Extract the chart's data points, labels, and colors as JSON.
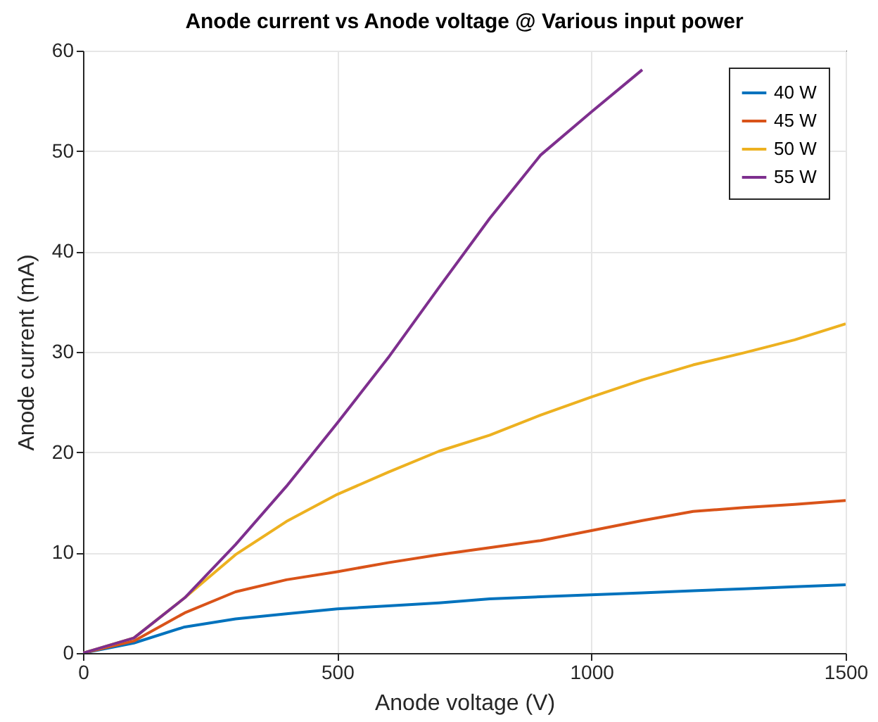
{
  "chart_data": {
    "type": "line",
    "title": "Anode current vs Anode voltage @ Various input power",
    "xlabel": "Anode voltage (V)",
    "ylabel": "Anode current (mA)",
    "x": [
      0,
      100,
      200,
      300,
      400,
      500,
      600,
      700,
      800,
      900,
      1000,
      1100,
      1200,
      1300,
      1400,
      1500
    ],
    "series": [
      {
        "name": "40 W",
        "color": "#0072bd",
        "values": [
          0,
          1.0,
          2.6,
          3.4,
          3.9,
          4.4,
          4.7,
          5.0,
          5.4,
          5.6,
          5.8,
          6.0,
          6.2,
          6.4,
          6.6,
          6.8
        ]
      },
      {
        "name": "45 W",
        "color": "#d95319",
        "values": [
          0,
          1.2,
          4.0,
          6.1,
          7.3,
          8.1,
          9.0,
          9.8,
          10.5,
          11.2,
          12.2,
          13.2,
          14.1,
          14.5,
          14.8,
          15.2
        ]
      },
      {
        "name": "50 W",
        "color": "#edb120",
        "values": [
          0,
          1.5,
          5.5,
          9.8,
          13.1,
          15.8,
          18.0,
          20.1,
          21.7,
          23.7,
          25.5,
          27.2,
          28.7,
          29.9,
          31.2,
          32.8
        ]
      },
      {
        "name": "55 W",
        "color": "#7e2f8e",
        "x": [
          0,
          100,
          200,
          300,
          400,
          500,
          600,
          700,
          800,
          900,
          1000,
          1100
        ],
        "values": [
          0,
          1.5,
          5.5,
          10.8,
          16.6,
          22.9,
          29.4,
          36.4,
          43.3,
          49.6,
          53.9,
          58.1
        ]
      }
    ],
    "xlim": [
      0,
      1500
    ],
    "ylim": [
      0,
      60
    ],
    "xticks": [
      0,
      500,
      1000,
      1500
    ],
    "yticks": [
      0,
      10,
      20,
      30,
      40,
      50,
      60
    ],
    "grid": true,
    "legend": "top right",
    "line_style": "solid"
  }
}
